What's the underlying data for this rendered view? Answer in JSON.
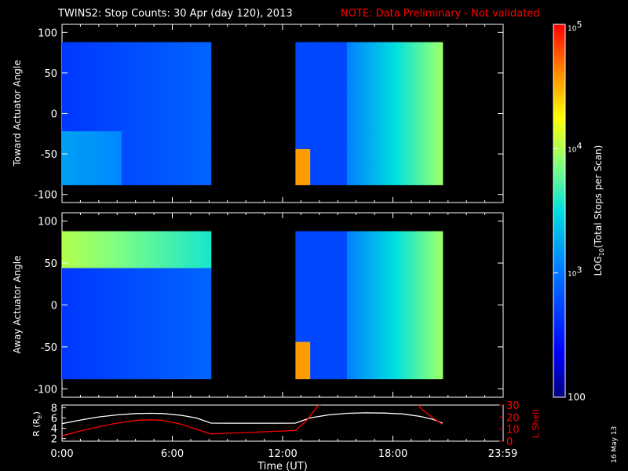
{
  "title": "TWINS2: Stop Counts: 30 Apr (day 120), 2013",
  "note": "NOTE: Data Preliminary - Not validated",
  "date_stamp": "16 May 13",
  "colors": {
    "background": "#000000",
    "foreground": "#ffffff",
    "note": "#ff0000",
    "r_line": "#ffffff",
    "lshell_line": "#ff0000"
  },
  "chart_data": [
    {
      "type": "heatmap",
      "name": "toward",
      "ylabel": "Toward Actuator Angle",
      "ylim": [
        -110,
        110
      ],
      "yticks": [
        "-100",
        "-50",
        "0",
        "50",
        "100"
      ],
      "ytick_values": [
        -100,
        -50,
        0,
        50,
        100
      ],
      "x_unit": "hours UT",
      "xlim": [
        0,
        24
      ],
      "angle_range": [
        -88,
        88
      ],
      "data_intervals": [
        [
          0.0,
          8.1
        ],
        [
          12.7,
          20.7
        ]
      ],
      "colorscale": "log10 counts, 100 to 1e5"
    },
    {
      "type": "heatmap",
      "name": "away",
      "ylabel": "Away Actuator Angle",
      "ylim": [
        -110,
        110
      ],
      "yticks": [
        "-100",
        "-50",
        "0",
        "50",
        "100"
      ],
      "ytick_values": [
        -100,
        -50,
        0,
        50,
        100
      ],
      "x_unit": "hours UT",
      "xlim": [
        0,
        24
      ],
      "angle_range": [
        -88,
        88
      ],
      "data_intervals": [
        [
          0.0,
          8.1
        ],
        [
          12.7,
          20.7
        ]
      ],
      "colorscale": "log10 counts, 100 to 1e5"
    },
    {
      "type": "line",
      "name": "orbit",
      "xlabel": "Time (UT)",
      "xticks": [
        "0:00",
        "6:00",
        "12:00",
        "18:00",
        "23:59"
      ],
      "xtick_values": [
        0,
        6,
        12,
        18,
        23.98
      ],
      "xlim": [
        0,
        24
      ],
      "left_axis": {
        "label": "R (R",
        "label_sub": "E",
        "label_end": ")",
        "ylim": [
          1.5,
          8.5
        ],
        "ticks": [
          "2",
          "4",
          "6",
          "8"
        ],
        "tick_values": [
          2,
          4,
          6,
          8
        ]
      },
      "right_axis": {
        "label": "L Shell",
        "ylim": [
          0,
          30
        ],
        "ticks": [
          "0",
          "10",
          "20",
          "30"
        ],
        "tick_values": [
          0,
          10,
          20,
          30
        ]
      },
      "series": [
        {
          "axis": "left",
          "x": [
            0,
            1,
            2,
            3,
            4,
            4.8,
            5.5,
            6.5,
            7.3,
            8.1,
            9,
            10,
            11,
            12,
            12.7,
            13.5,
            14.5,
            15.5,
            16.5,
            17.5,
            18.5,
            19.5,
            20.2,
            20.7
          ],
          "y": [
            4.9,
            5.6,
            6.2,
            6.6,
            6.85,
            6.9,
            6.85,
            6.5,
            6.0,
            5.0,
            4.98,
            4.98,
            4.98,
            4.98,
            5.0,
            6.0,
            6.6,
            6.9,
            7.0,
            6.95,
            6.8,
            6.3,
            5.7,
            5.0
          ]
        },
        {
          "axis": "right",
          "x": [
            0,
            1,
            2,
            3,
            4,
            4.8,
            5.5,
            6.5,
            7.3,
            8.1,
            9,
            10,
            11,
            12,
            12.7,
            13.3,
            13.9,
            14.15,
            19.3,
            19.7,
            20.2,
            20.7
          ],
          "y": [
            4.5,
            8.5,
            12,
            15,
            17.2,
            17.8,
            17.2,
            14,
            10,
            6,
            6.6,
            7.2,
            7.8,
            8.4,
            9,
            17,
            29,
            31,
            31,
            25,
            19,
            14
          ]
        }
      ]
    }
  ],
  "colorbar": {
    "label": "LOG",
    "label_sub": "10",
    "label_rest": "(Total Stops per Scan)",
    "range": [
      100,
      100000
    ],
    "scale": "log",
    "tick_labels": [
      {
        "value": 100,
        "text": "100"
      },
      {
        "value": 1000,
        "base": "10",
        "exp": "3"
      },
      {
        "value": 10000,
        "base": "10",
        "exp": "4"
      },
      {
        "value": 100000,
        "base": "10",
        "exp": "5"
      }
    ]
  }
}
